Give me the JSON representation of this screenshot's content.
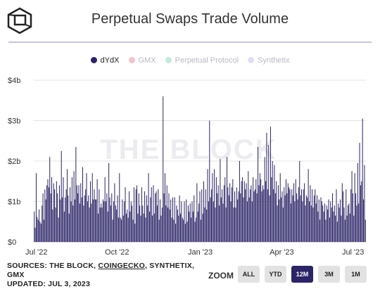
{
  "title": "Perpetual Swaps Trade Volume",
  "legend": [
    {
      "label": "dYdX",
      "color": "#2b2467",
      "active": true
    },
    {
      "label": "GMX",
      "color": "#f2c4cc",
      "active": false
    },
    {
      "label": "Perpetual Protocol",
      "color": "#c6e8de",
      "active": false
    },
    {
      "label": "Synthetix",
      "color": "#dcdcf4",
      "active": false
    }
  ],
  "watermark": "THE BLOCK",
  "sources": {
    "prefix": "SOURCES: THE BLOCK, ",
    "link": "COINGECKO",
    "suffix": ", SYNTHETIX,",
    "line2": "GMX",
    "updated": "UPDATED: JUL 3, 2023"
  },
  "zoom": {
    "label": "ZOOM",
    "buttons": [
      {
        "label": "ALL",
        "active": false
      },
      {
        "label": "YTD",
        "active": false
      },
      {
        "label": "12M",
        "active": true
      },
      {
        "label": "3M",
        "active": false
      },
      {
        "label": "1M",
        "active": false
      }
    ]
  },
  "chart_data": {
    "type": "bar",
    "title": "Perpetual Swaps Trade Volume",
    "y_unit": "$ (billions)",
    "ylim": [
      0,
      4
    ],
    "y_ticks": [
      "$0",
      "$1b",
      "$2b",
      "$3b",
      "$4b"
    ],
    "x_ticks": [
      "Jul '22",
      "Oct '22",
      "Jan '23",
      "Apr '23",
      "Jul '23"
    ],
    "x_range": [
      "2022-07-01",
      "2023-07-03"
    ],
    "grid": true,
    "legend_position": "top",
    "series": [
      {
        "name": "dYdX",
        "color": "#2b2467",
        "values": [
          0.75,
          0.35,
          1.7,
          0.62,
          0.55,
          0.8,
          0.5,
          0.45,
          0.9,
          1.2,
          0.55,
          1.3,
          1.05,
          1.4,
          1.55,
          1.35,
          2.1,
          1.2,
          1.6,
          0.8,
          1.45,
          1.3,
          0.85,
          1.5,
          1.2,
          0.6,
          1.4,
          1.05,
          2.25,
          1.1,
          1.6,
          0.75,
          1.1,
          1.3,
          1.8,
          1.15,
          0.7,
          1.35,
          1.0,
          1.6,
          0.9,
          1.75,
          1.05,
          2.35,
          1.4,
          1.2,
          1.4,
          0.95,
          1.45,
          1.1,
          1.85,
          0.9,
          1.15,
          1.3,
          1.7,
          1.0,
          1.15,
          0.85,
          1.5,
          0.95,
          1.7,
          1.05,
          1.3,
          1.05,
          1.05,
          1.55,
          0.7,
          1.3,
          0.85,
          0.95,
          0.85,
          1.05,
          1.0,
          1.6,
          1.0,
          1.2,
          0.75,
          1.95,
          1.1,
          0.9,
          1.2,
          0.55,
          1.0,
          1.45,
          0.9,
          0.8,
          1.15,
          0.6,
          1.7,
          0.6,
          0.55,
          1.05,
          0.65,
          1.0,
          1.35,
          0.7,
          0.8,
          0.6,
          1.25,
          0.75,
          1.0,
          0.9,
          0.55,
          1.35,
          0.45,
          1.3,
          1.4,
          0.7,
          1.2,
          0.9,
          0.65,
          1.35,
          0.9,
          0.7,
          1.25,
          0.6,
          1.15,
          0.9,
          1.7,
          0.75,
          1.1,
          1.35,
          0.65,
          1.4,
          0.7,
          1.2,
          1.25,
          0.9,
          1.3,
          0.55,
          1.05,
          0.65,
          0.85,
          3.6,
          1.2,
          1.7,
          0.9,
          1.4,
          0.85,
          1.2,
          0.8,
          1.05,
          0.6,
          1.1,
          0.55,
          1.1,
          0.45,
          0.9,
          0.8,
          0.65,
          1.15,
          0.7,
          1.0,
          0.6,
          0.55,
          1.0,
          0.45,
          1.05,
          0.5,
          0.9,
          0.75,
          0.95,
          0.6,
          1.0,
          0.75,
          1.15,
          0.5,
          0.6,
          1.45,
          0.75,
          0.95,
          1.25,
          0.55,
          1.3,
          0.7,
          1.5,
          0.85,
          1.3,
          0.8,
          1.8,
          1.0,
          3.0,
          1.1,
          1.3,
          1.7,
          1.0,
          1.8,
          0.85,
          1.6,
          1.2,
          1.4,
          0.9,
          2.05,
          1.1,
          1.3,
          0.95,
          1.4,
          1.6,
          0.85,
          2.1,
          1.35,
          1.15,
          1.45,
          1.0,
          1.35,
          1.55,
          0.85,
          1.25,
          0.85,
          1.35,
          1.05,
          1.25,
          2.0,
          1.2,
          1.5,
          1.6,
          1.1,
          1.5,
          1.3,
          1.45,
          1.0,
          1.75,
          1.1,
          1.3,
          1.4,
          1.0,
          1.6,
          1.25,
          1.3,
          1.55,
          1.2,
          2.35,
          1.4,
          1.7,
          1.55,
          1.25,
          1.4,
          1.3,
          2.1,
          1.5,
          2.7,
          1.3,
          2.4,
          1.15,
          2.85,
          1.6,
          2.0,
          1.3,
          1.9,
          1.2,
          1.5,
          0.9,
          1.4,
          1.05,
          1.7,
          1.1,
          1.25,
          0.85,
          1.35,
          1.15,
          1.55,
          1.2,
          1.45,
          1.35,
          1.3,
          0.95,
          1.3,
          1.15,
          1.45,
          1.0,
          1.55,
          1.2,
          1.05,
          1.35,
          2.0,
          1.15,
          1.3,
          1.0,
          1.3,
          1.45,
          0.9,
          1.15,
          1.1,
          1.8,
          1.0,
          1.4,
          0.9,
          1.3,
          0.85,
          1.15,
          1.3,
          0.95,
          1.15,
          0.75,
          1.05,
          0.55,
          1.1,
          1.0,
          0.9,
          0.75,
          0.95,
          0.55,
          0.9,
          0.8,
          1.05,
          0.6,
          1.0,
          0.85,
          1.2,
          0.75,
          0.9,
          0.65,
          1.3,
          0.5,
          0.95,
          0.85,
          1.05,
          0.65,
          1.45,
          1.25,
          0.85,
          0.55,
          1.3,
          0.65,
          0.9,
          0.95,
          0.7,
          1.3,
          1.75,
          1.2,
          0.65,
          1.7,
          1.2,
          0.9,
          1.95,
          0.95,
          2.45,
          1.4,
          1.5,
          3.05,
          1.05,
          1.9,
          0.55
        ]
      }
    ]
  }
}
